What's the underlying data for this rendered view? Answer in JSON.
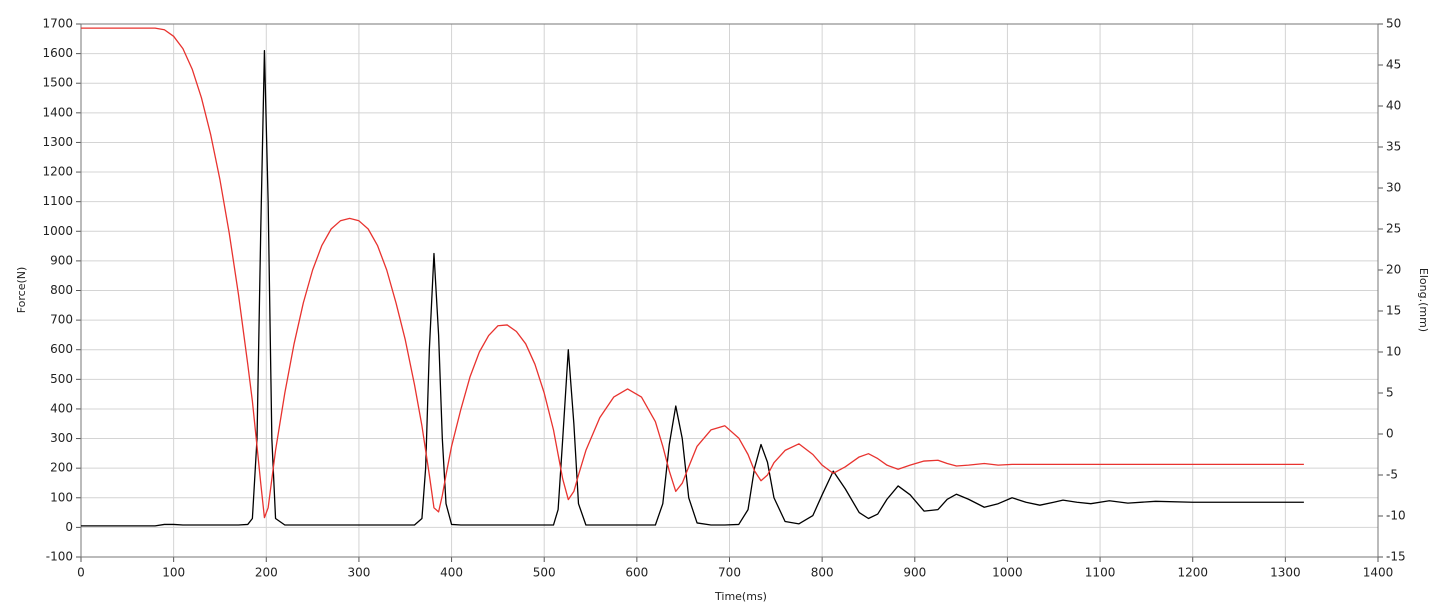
{
  "chart_data": {
    "type": "line",
    "x_label": "Time(ms)",
    "y_label": "Force(N)",
    "y2_label": "Elong.(mm)",
    "x": [
      0,
      20,
      40,
      60,
      80,
      90,
      100,
      110,
      120,
      130,
      140,
      150,
      160,
      170,
      180,
      185,
      190,
      194,
      198,
      202,
      206,
      210,
      220,
      230,
      240,
      250,
      260,
      270,
      280,
      290,
      300,
      310,
      320,
      330,
      340,
      350,
      360,
      368,
      372,
      376,
      381,
      386,
      390,
      394,
      400,
      410,
      420,
      430,
      440,
      450,
      460,
      470,
      480,
      490,
      500,
      510,
      515,
      520,
      526,
      532,
      537,
      545,
      560,
      575,
      590,
      605,
      620,
      628,
      635,
      642,
      649,
      656,
      665,
      680,
      695,
      710,
      720,
      727,
      734,
      741,
      748,
      760,
      775,
      790,
      800,
      812,
      825,
      840,
      850,
      860,
      870,
      882,
      895,
      910,
      925,
      935,
      945,
      958,
      975,
      990,
      1005,
      1020,
      1035,
      1050,
      1060,
      1075,
      1090,
      1110,
      1130,
      1160,
      1200,
      1250,
      1320
    ],
    "series": [
      {
        "name": "Force",
        "color": "#000000",
        "axis": "y",
        "values": [
          5,
          5,
          5,
          5,
          5,
          10,
          10,
          8,
          8,
          8,
          8,
          8,
          8,
          8,
          10,
          30,
          300,
          1000,
          1610,
          1100,
          300,
          30,
          8,
          8,
          8,
          8,
          8,
          8,
          8,
          8,
          8,
          8,
          8,
          8,
          8,
          8,
          8,
          30,
          200,
          600,
          925,
          650,
          300,
          80,
          10,
          8,
          8,
          8,
          8,
          8,
          8,
          8,
          8,
          8,
          8,
          8,
          60,
          300,
          600,
          350,
          80,
          8,
          8,
          8,
          8,
          8,
          8,
          80,
          280,
          410,
          300,
          100,
          15,
          8,
          8,
          10,
          60,
          200,
          280,
          220,
          100,
          20,
          12,
          40,
          110,
          190,
          130,
          50,
          30,
          45,
          95,
          140,
          110,
          55,
          60,
          95,
          112,
          95,
          68,
          80,
          100,
          85,
          75,
          85,
          92,
          85,
          80,
          90,
          82,
          88,
          85,
          85,
          85
        ]
      },
      {
        "name": "Elong",
        "color": "#e8332f",
        "axis": "y2",
        "values": [
          49.5,
          49.5,
          49.5,
          49.5,
          49.5,
          49.3,
          48.5,
          47,
          44.5,
          41,
          36.5,
          31,
          24.5,
          17,
          8.5,
          4,
          -1.5,
          -6,
          -10.2,
          -9,
          -5.5,
          -2,
          5,
          11,
          16,
          20,
          23,
          25,
          26,
          26.3,
          26,
          25,
          23,
          20,
          16,
          11.5,
          6,
          1,
          -2,
          -5,
          -9,
          -9.5,
          -7.5,
          -5,
          -1.5,
          3,
          7,
          10,
          12,
          13.2,
          13.3,
          12.5,
          11,
          8.5,
          5,
          0.5,
          -2.5,
          -5.5,
          -8,
          -7,
          -5,
          -2,
          2,
          4.5,
          5.5,
          4.5,
          1.5,
          -1.5,
          -4.5,
          -7,
          -6,
          -4,
          -1.5,
          0.5,
          1,
          -0.5,
          -2.5,
          -4.5,
          -5.7,
          -5,
          -3.5,
          -2,
          -1.2,
          -2.5,
          -3.8,
          -4.8,
          -4,
          -2.8,
          -2.4,
          -3,
          -3.8,
          -4.3,
          -3.8,
          -3.3,
          -3.2,
          -3.6,
          -3.9,
          -3.8,
          -3.6,
          -3.8,
          -3.7,
          -3.7,
          -3.7,
          -3.7,
          -3.7,
          -3.7,
          -3.7,
          -3.7,
          -3.7,
          -3.7,
          -3.7,
          -3.7,
          -3.7
        ]
      }
    ],
    "xlim": [
      0,
      1400
    ],
    "xticks": [
      0,
      100,
      200,
      300,
      400,
      500,
      600,
      700,
      800,
      900,
      1000,
      1100,
      1200,
      1300,
      1400
    ],
    "ylim": [
      -100,
      1700
    ],
    "yticks": [
      -100,
      0,
      100,
      200,
      300,
      400,
      500,
      600,
      700,
      800,
      900,
      1000,
      1100,
      1200,
      1300,
      1400,
      1500,
      1600,
      1700
    ],
    "y2lim": [
      -15,
      50
    ],
    "y2ticks": [
      -15,
      -10,
      -5,
      0,
      5,
      10,
      15,
      20,
      25,
      30,
      35,
      40,
      45,
      50
    ],
    "grid": true
  }
}
